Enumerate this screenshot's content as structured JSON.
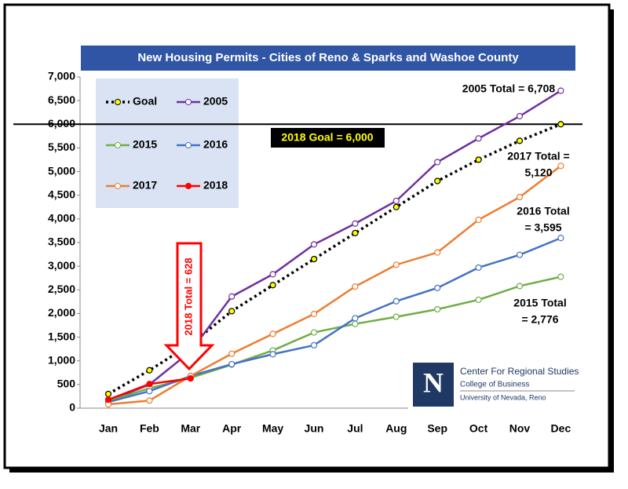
{
  "chart_data": {
    "type": "line",
    "title": "New Housing Permits - Cities of Reno & Sparks and Washoe County",
    "categories": [
      "Jan",
      "Feb",
      "Mar",
      "Apr",
      "May",
      "Jun",
      "Jul",
      "Aug",
      "Sep",
      "Oct",
      "Nov",
      "Dec"
    ],
    "ylim": [
      0,
      7000
    ],
    "yticks": [
      0,
      500,
      {
        "value": 1000,
        "label": "1,000"
      },
      {
        "value": 1500,
        "label": "1,500"
      },
      {
        "value": 2000,
        "label": "2,000"
      },
      {
        "value": 2500,
        "label": "2,500"
      },
      {
        "value": 3000,
        "label": "3,000"
      },
      {
        "value": 3500,
        "label": "3,500"
      },
      {
        "value": 4000,
        "label": "4,000"
      },
      {
        "value": 4500,
        "label": "4,500"
      },
      {
        "value": 5000,
        "label": "5,000"
      },
      {
        "value": 5500,
        "label": "5,500"
      },
      {
        "value": 6000,
        "label": "6,000"
      },
      {
        "value": 6500,
        "label": "6,500"
      },
      {
        "value": 7000,
        "label": "7,000"
      }
    ],
    "series": [
      {
        "name": "Goal",
        "color": "#000000",
        "marker_color": "#ffff00",
        "dashed": true,
        "values": [
          300,
          800,
          1350,
          2050,
          2600,
          3150,
          3700,
          4250,
          4800,
          5250,
          5650,
          6000
        ]
      },
      {
        "name": "2005",
        "color": "#7030a0",
        "values": [
          150,
          500,
          1200,
          2360,
          2830,
          3460,
          3900,
          4380,
          5200,
          5700,
          6170,
          6708
        ]
      },
      {
        "name": "2015",
        "color": "#70ad47",
        "values": [
          150,
          420,
          640,
          920,
          1220,
          1600,
          1780,
          1930,
          2090,
          2290,
          2580,
          2776
        ]
      },
      {
        "name": "2016",
        "color": "#4472c4",
        "values": [
          130,
          360,
          680,
          930,
          1140,
          1330,
          1900,
          2260,
          2540,
          2970,
          3240,
          3595
        ]
      },
      {
        "name": "2017",
        "color": "#ed7d31",
        "values": [
          80,
          160,
          680,
          1150,
          1570,
          1990,
          2570,
          3030,
          3290,
          3980,
          4460,
          5120
        ]
      },
      {
        "name": "2018",
        "color": "#ff0000",
        "marker_color": "#ff0000",
        "values": [
          180,
          510,
          628,
          null,
          null,
          null,
          null,
          null,
          null,
          null,
          null,
          null
        ]
      }
    ],
    "goal_line": {
      "value": 6000,
      "label": "2018 Goal = 6,000"
    },
    "annotations": [
      {
        "lines": [
          "2005 Total = 6,708"
        ]
      },
      {
        "lines": [
          "2017 Total =",
          "5,120"
        ]
      },
      {
        "lines": [
          "2016 Total",
          "= 3,595"
        ]
      },
      {
        "lines": [
          "2015 Total",
          "= 2,776"
        ]
      },
      {
        "lines": [
          "2018 Total = 628"
        ]
      }
    ],
    "logo": {
      "mark": "N",
      "name": "Center For Regional Studies",
      "college": "College of Business",
      "university": "University of Nevada, Reno"
    }
  }
}
